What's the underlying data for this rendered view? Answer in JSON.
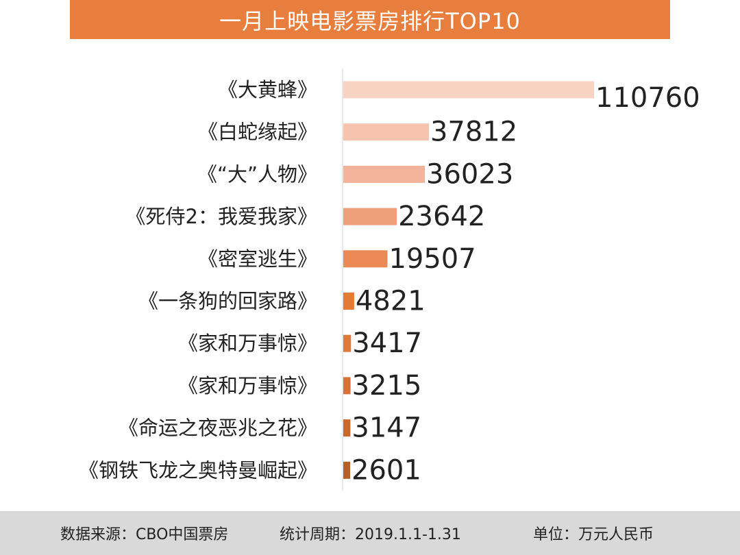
{
  "title": "一月上映电影票房排行TOP10",
  "chart_data": {
    "type": "bar",
    "orientation": "horizontal",
    "categories": [
      "《大黄蜂》",
      "《白蛇缘起》",
      "《“大”人物》",
      "《死侍2：我爱我家》",
      "《密室逃生》",
      "《一条狗的回家路》",
      "《家和万事惊》",
      "《家和万事惊》",
      "《命运之夜恶兆之花》",
      "《钢铁飞龙之奥特曼崛起》"
    ],
    "values": [
      110760,
      37812,
      36023,
      23642,
      19507,
      4821,
      3417,
      3215,
      3147,
      2601
    ],
    "bar_colors": [
      "#f7d3c3",
      "#f5c3ae",
      "#f3b49b",
      "#f0a078",
      "#ec8a55",
      "#e47a34",
      "#e07a38",
      "#d97233",
      "#cc6a2b",
      "#b85f24"
    ],
    "data_labels": true,
    "grid": false,
    "legend": "none"
  },
  "footer": {
    "source": "数据来源：CBO中国票房",
    "period": "统计周期：2019.1.1-1.31",
    "unit": "单位：万元人民币"
  },
  "colors": {
    "accent": "#e87e3d",
    "footer_bg": "#d9d9d9",
    "axis": "#d0d0d0",
    "text": "#222222"
  }
}
